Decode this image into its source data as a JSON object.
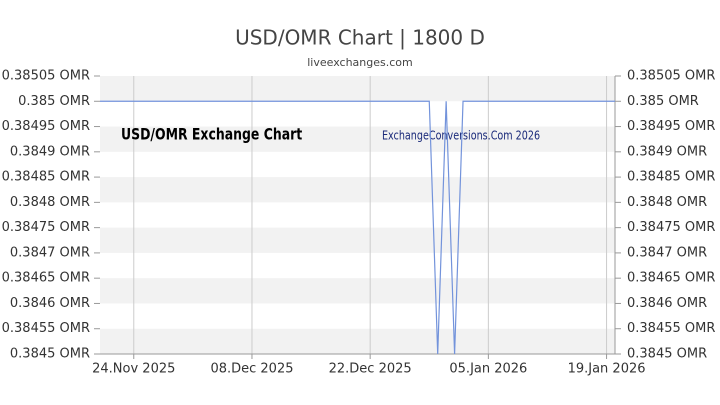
{
  "chart_data": {
    "type": "line",
    "title": "USD/OMR Chart | 1800 D",
    "subtitle": "liveexchanges.com",
    "annotations": [
      "USD/OMR Exchange Chart",
      "ExchangeConversions.Com 2026"
    ],
    "x": [
      "2025-11-20",
      "2025-12-29",
      "2025-12-30",
      "2025-12-31",
      "2026-01-01",
      "2026-01-02",
      "2026-01-20"
    ],
    "series": [
      {
        "name": "USD/OMR",
        "color": "#7393db",
        "values": [
          0.385,
          0.385,
          0.3845,
          0.385,
          0.3845,
          0.385,
          0.385
        ]
      }
    ],
    "xlim": [
      "2025-11-20",
      "2026-01-20"
    ],
    "xticks": [
      {
        "value": "2025-11-24",
        "label": "24.Nov 2025"
      },
      {
        "value": "2025-12-08",
        "label": "08.Dec 2025"
      },
      {
        "value": "2025-12-22",
        "label": "22.Dec 2025"
      },
      {
        "value": "2026-01-05",
        "label": "05.Jan 2026"
      },
      {
        "value": "2026-01-19",
        "label": "19.Jan 2026"
      }
    ],
    "ylim": [
      0.3845,
      0.38505
    ],
    "yticks": [
      {
        "value": 0.3845,
        "label": "0.3845 OMR"
      },
      {
        "value": 0.38455,
        "label": "0.38455 OMR"
      },
      {
        "value": 0.3846,
        "label": "0.3846 OMR"
      },
      {
        "value": 0.38465,
        "label": "0.38465 OMR"
      },
      {
        "value": 0.3847,
        "label": "0.3847 OMR"
      },
      {
        "value": 0.38475,
        "label": "0.38475 OMR"
      },
      {
        "value": 0.3848,
        "label": "0.3848 OMR"
      },
      {
        "value": 0.38485,
        "label": "0.38485 OMR"
      },
      {
        "value": 0.3849,
        "label": "0.3849 OMR"
      },
      {
        "value": 0.38495,
        "label": "0.38495 OMR"
      },
      {
        "value": 0.385,
        "label": "0.385 OMR"
      },
      {
        "value": 0.38505,
        "label": "0.38505 OMR"
      }
    ],
    "grid": true
  }
}
